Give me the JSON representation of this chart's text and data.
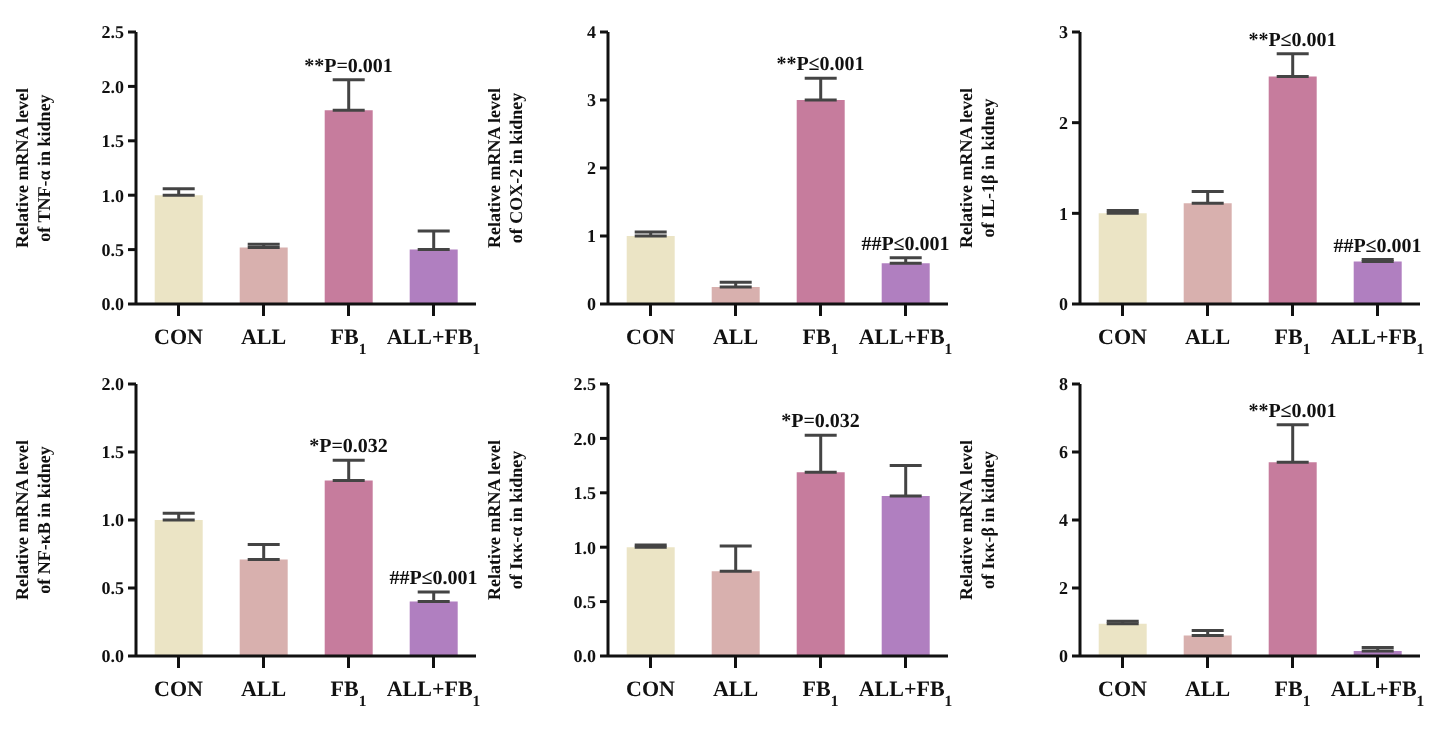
{
  "chart_data": [
    {
      "type": "bar",
      "ylabel": "Relative mRNA  level\nof TNF-α in  kidney",
      "categories": [
        "CON",
        "ALL",
        "FB$_{1}$",
        "ALL+FB$_{1}$"
      ],
      "values": [
        1.0,
        0.52,
        1.78,
        0.5
      ],
      "errors": [
        [
          1.0,
          1.06
        ],
        [
          0.52,
          0.55
        ],
        [
          1.78,
          2.06
        ],
        [
          0.5,
          0.67
        ]
      ],
      "colors": [
        "#ebe4c5",
        "#d8b0ae",
        "#c67c9d",
        "#b07fc0"
      ],
      "ylim": [
        0,
        2.5
      ],
      "yticks": [
        {
          "value": 0,
          "label": "0.0"
        },
        0.5,
        {
          "value": 1,
          "label": "1.0"
        },
        1.5,
        {
          "value": 2,
          "label": "2.0"
        },
        2.5
      ],
      "grid": false,
      "legend": false,
      "annotations": [
        {
          "text": "**P=0.001",
          "x": "FB$_{1}$",
          "y": 2.06
        }
      ]
    },
    {
      "type": "bar",
      "ylabel": "Relative mRNA  level\nof COX-2 in  kidney",
      "categories": [
        "CON",
        "ALL",
        "FB$_{1}$",
        "ALL+FB$_{1}$"
      ],
      "values": [
        1.0,
        0.25,
        3.0,
        0.6
      ],
      "errors": [
        [
          1.0,
          1.06
        ],
        [
          0.25,
          0.32
        ],
        [
          3.0,
          3.32
        ],
        [
          0.6,
          0.68
        ]
      ],
      "colors": [
        "#ebe4c5",
        "#d8b0ae",
        "#c67c9d",
        "#b07fc0"
      ],
      "ylim": [
        0,
        4
      ],
      "yticks": [
        0,
        1,
        2,
        3,
        4
      ],
      "grid": false,
      "legend": false,
      "annotations": [
        {
          "text": "**P≤0.001",
          "x": "FB$_{1}$",
          "y": 3.32
        },
        {
          "text": "##P≤0.001",
          "x": "ALL+FB$_{1}$",
          "y": 0.68
        }
      ]
    },
    {
      "type": "bar",
      "ylabel": "Relative mRNA  level\nof IL-1β in  kidney",
      "categories": [
        "CON",
        "ALL",
        "FB$_{1}$",
        "ALL+FB$_{1}$"
      ],
      "values": [
        1.0,
        1.11,
        2.51,
        0.47
      ],
      "errors": [
        [
          1.0,
          1.03
        ],
        [
          1.11,
          1.24
        ],
        [
          2.51,
          2.76
        ],
        [
          0.47,
          0.49
        ]
      ],
      "colors": [
        "#ebe4c5",
        "#d8b0ae",
        "#c67c9d",
        "#b07fc0"
      ],
      "ylim": [
        0,
        3
      ],
      "yticks": [
        0,
        1,
        2,
        3
      ],
      "grid": false,
      "legend": false,
      "annotations": [
        {
          "text": "**P≤0.001",
          "x": "FB$_{1}$",
          "y": 2.76
        },
        {
          "text": "##P≤0.001",
          "x": "ALL+FB$_{1}$",
          "y": 0.49
        }
      ]
    },
    {
      "type": "bar",
      "ylabel": "Relative mRNA  level\nof NF-κB in  kidney",
      "categories": [
        "CON",
        "ALL",
        "FB$_{1}$",
        "ALL+FB$_{1}$"
      ],
      "values": [
        1.0,
        0.71,
        1.29,
        0.4
      ],
      "errors": [
        [
          1.0,
          1.05
        ],
        [
          0.71,
          0.82
        ],
        [
          1.29,
          1.44
        ],
        [
          0.4,
          0.47
        ]
      ],
      "colors": [
        "#ebe4c5",
        "#d8b0ae",
        "#c67c9d",
        "#b07fc0"
      ],
      "ylim": [
        0,
        2
      ],
      "yticks": [
        {
          "value": 0,
          "label": "0.0"
        },
        0.5,
        {
          "value": 1,
          "label": "1.0"
        },
        1.5,
        {
          "value": 2,
          "label": "2.0"
        }
      ],
      "grid": false,
      "legend": false,
      "annotations": [
        {
          "text": "*P=0.032",
          "x": "FB$_{1}$",
          "y": 1.44
        },
        {
          "text": "##P≤0.001",
          "x": "ALL+FB$_{1}$",
          "y": 0.47
        }
      ]
    },
    {
      "type": "bar",
      "ylabel": "Relative mRNA  level\nof Iκκ-α in  kidney",
      "categories": [
        "CON",
        "ALL",
        "FB$_{1}$",
        "ALL+FB$_{1}$"
      ],
      "values": [
        1.0,
        0.78,
        1.69,
        1.47
      ],
      "errors": [
        [
          1.0,
          1.02
        ],
        [
          0.78,
          1.01
        ],
        [
          1.69,
          2.03
        ],
        [
          1.47,
          1.75
        ]
      ],
      "colors": [
        "#ebe4c5",
        "#d8b0ae",
        "#c67c9d",
        "#b07fc0"
      ],
      "ylim": [
        0,
        2.5
      ],
      "yticks": [
        {
          "value": 0,
          "label": "0.0"
        },
        0.5,
        {
          "value": 1,
          "label": "1.0"
        },
        1.5,
        {
          "value": 2,
          "label": "2.0"
        },
        2.5
      ],
      "grid": false,
      "legend": false,
      "annotations": [
        {
          "text": "*P=0.032",
          "x": "FB$_{1}$",
          "y": 2.03
        }
      ]
    },
    {
      "type": "bar",
      "ylabel": "Relative mRNA  level\nof Iκκ-β in  kidney",
      "categories": [
        "CON",
        "ALL",
        "FB$_{1}$",
        "ALL+FB$_{1}$"
      ],
      "values": [
        0.95,
        0.6,
        5.7,
        0.15
      ],
      "errors": [
        [
          0.95,
          1.02
        ],
        [
          0.6,
          0.75
        ],
        [
          5.7,
          6.8
        ],
        [
          0.15,
          0.25
        ]
      ],
      "colors": [
        "#ebe4c5",
        "#d8b0ae",
        "#c67c9d",
        "#b07fc0"
      ],
      "ylim": [
        0,
        8
      ],
      "yticks": [
        0,
        2,
        4,
        6,
        8
      ],
      "grid": false,
      "legend": false,
      "annotations": [
        {
          "text": "**P≤0.001",
          "x": "FB$_{1}$",
          "y": 6.8
        }
      ]
    }
  ]
}
